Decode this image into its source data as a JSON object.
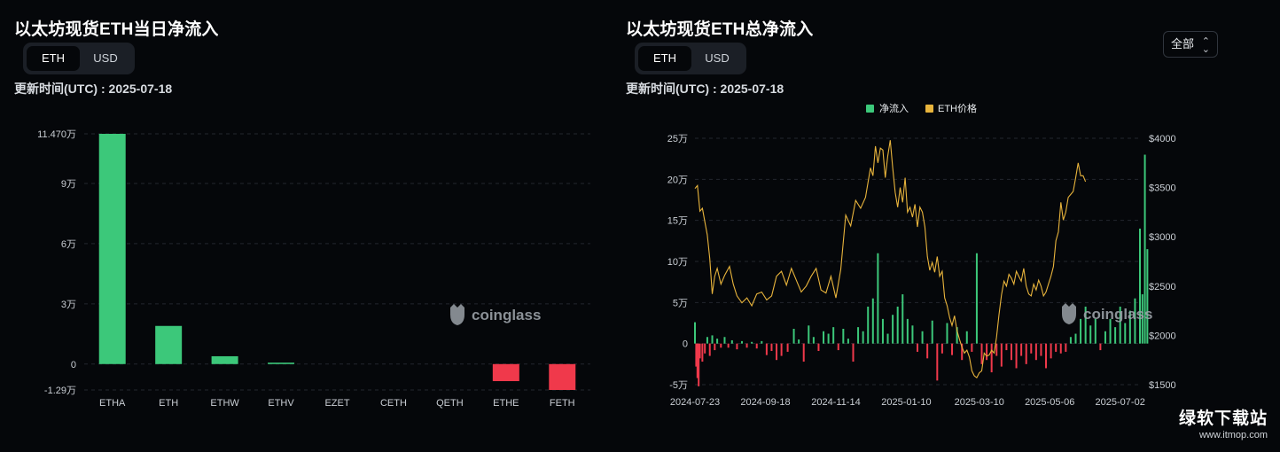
{
  "left": {
    "title": "以太坊现货ETH当日净流入",
    "toggle": [
      "ETH",
      "USD"
    ],
    "active_toggle": "ETH",
    "updated": "更新时间(UTC) : 2025-07-18",
    "watermark": "coinglass"
  },
  "right": {
    "title": "以太坊现货ETH总净流入",
    "toggle": [
      "ETH",
      "USD"
    ],
    "active_toggle": "ETH",
    "updated": "更新时间(UTC) : 2025-07-18",
    "range": "全部",
    "watermark": "coinglass"
  },
  "site": {
    "name": "绿软下载站",
    "url": "www.itmop.com"
  },
  "colors": {
    "positive": "#3cc87a",
    "negative": "#f0394b",
    "price": "#e8b43c",
    "grid": "#23272e"
  },
  "chart_data": [
    {
      "type": "bar",
      "categories": [
        "ETHA",
        "ETH",
        "ETHW",
        "ETHV",
        "EZET",
        "CETH",
        "QETH",
        "ETHE",
        "FETH"
      ],
      "values": [
        114700,
        19000,
        3900,
        700,
        0,
        0,
        0,
        -8500,
        -12900
      ],
      "yticks": [
        114700,
        90000,
        60000,
        30000,
        0,
        -12900
      ],
      "ytick_labels": [
        "11.470万",
        "9万",
        "6万",
        "3万",
        "0",
        "-1.29万"
      ],
      "ylim": [
        -12900,
        114700
      ],
      "unit": "ETH",
      "grid": true
    },
    {
      "type": "bar+line",
      "series": [
        {
          "name": "净流入",
          "kind": "bar",
          "axis": "left"
        },
        {
          "name": "ETH价格",
          "kind": "line",
          "axis": "right"
        }
      ],
      "x_start": "2024-07-23",
      "x_end": "2025-07-18",
      "xtick_labels": [
        "2024-07-23",
        "2024-09-18",
        "2024-11-14",
        "2025-01-10",
        "2025-03-10",
        "2025-05-06",
        "2025-07-02"
      ],
      "xtick_days": [
        0,
        57,
        114,
        171,
        230,
        287,
        344
      ],
      "ylim_left": [
        -50000,
        250000
      ],
      "yticks_left": [
        250000,
        200000,
        150000,
        100000,
        50000,
        0,
        -50000
      ],
      "ytick_labels_left": [
        "25万",
        "20万",
        "15万",
        "10万",
        "5万",
        "0",
        "-5万"
      ],
      "ylim_right": [
        1500,
        4000
      ],
      "yticks_right": [
        4000,
        3500,
        3000,
        2500,
        2000,
        1500
      ],
      "ytick_labels_right": [
        "$4000",
        "$3500",
        "$3000",
        "$2500",
        "$2000",
        "$1500"
      ],
      "inflow_points": [
        [
          0,
          26000
        ],
        [
          1,
          -28000
        ],
        [
          2,
          -42000
        ],
        [
          3,
          -52000
        ],
        [
          4,
          -18000
        ],
        [
          6,
          -22000
        ],
        [
          8,
          -12000
        ],
        [
          10,
          8000
        ],
        [
          12,
          -15000
        ],
        [
          14,
          10000
        ],
        [
          16,
          -8000
        ],
        [
          18,
          6000
        ],
        [
          21,
          -5000
        ],
        [
          24,
          8000
        ],
        [
          27,
          -5000
        ],
        [
          30,
          4000
        ],
        [
          34,
          -7000
        ],
        [
          38,
          3000
        ],
        [
          42,
          -5000
        ],
        [
          46,
          2000
        ],
        [
          50,
          -6000
        ],
        [
          54,
          3000
        ],
        [
          58,
          -14000
        ],
        [
          62,
          -9000
        ],
        [
          66,
          -20000
        ],
        [
          70,
          -15000
        ],
        [
          75,
          -10000
        ],
        [
          80,
          18000
        ],
        [
          84,
          5000
        ],
        [
          88,
          -22000
        ],
        [
          92,
          22000
        ],
        [
          96,
          8000
        ],
        [
          100,
          -9000
        ],
        [
          104,
          15000
        ],
        [
          108,
          12000
        ],
        [
          112,
          20000
        ],
        [
          116,
          -8000
        ],
        [
          120,
          18000
        ],
        [
          124,
          6000
        ],
        [
          128,
          -22000
        ],
        [
          132,
          20000
        ],
        [
          136,
          15000
        ],
        [
          140,
          45000
        ],
        [
          144,
          55000
        ],
        [
          148,
          110000
        ],
        [
          152,
          30000
        ],
        [
          156,
          12000
        ],
        [
          160,
          35000
        ],
        [
          164,
          45000
        ],
        [
          168,
          60000
        ],
        [
          172,
          30000
        ],
        [
          176,
          22000
        ],
        [
          180,
          -10000
        ],
        [
          184,
          15000
        ],
        [
          188,
          -18000
        ],
        [
          192,
          28000
        ],
        [
          196,
          -45000
        ],
        [
          200,
          -12000
        ],
        [
          204,
          25000
        ],
        [
          208,
          -14000
        ],
        [
          212,
          20000
        ],
        [
          216,
          -20000
        ],
        [
          220,
          15000
        ],
        [
          224,
          -10000
        ],
        [
          228,
          110000
        ],
        [
          232,
          -25000
        ],
        [
          236,
          -20000
        ],
        [
          240,
          -35000
        ],
        [
          244,
          -15000
        ],
        [
          248,
          -28000
        ],
        [
          252,
          -8000
        ],
        [
          256,
          -20000
        ],
        [
          260,
          -30000
        ],
        [
          264,
          -15000
        ],
        [
          268,
          -25000
        ],
        [
          272,
          -12000
        ],
        [
          276,
          -20000
        ],
        [
          280,
          -15000
        ],
        [
          284,
          -30000
        ],
        [
          288,
          -18000
        ],
        [
          292,
          -10000
        ],
        [
          296,
          -12000
        ],
        [
          300,
          -10000
        ],
        [
          304,
          8000
        ],
        [
          308,
          12000
        ],
        [
          312,
          30000
        ],
        [
          316,
          45000
        ],
        [
          320,
          22000
        ],
        [
          324,
          30000
        ],
        [
          328,
          -8000
        ],
        [
          332,
          15000
        ],
        [
          336,
          30000
        ],
        [
          340,
          20000
        ],
        [
          344,
          45000
        ],
        [
          348,
          25000
        ],
        [
          352,
          40000
        ],
        [
          356,
          55000
        ],
        [
          360,
          140000
        ],
        [
          362,
          60000
        ],
        [
          364,
          230000
        ],
        [
          366,
          115000
        ]
      ],
      "price_points": [
        [
          0,
          3490
        ],
        [
          2,
          3520
        ],
        [
          4,
          3260
        ],
        [
          6,
          3290
        ],
        [
          8,
          3150
        ],
        [
          10,
          3020
        ],
        [
          12,
          2780
        ],
        [
          14,
          2420
        ],
        [
          16,
          2600
        ],
        [
          18,
          2680
        ],
        [
          21,
          2520
        ],
        [
          24,
          2610
        ],
        [
          28,
          2700
        ],
        [
          31,
          2520
        ],
        [
          34,
          2400
        ],
        [
          38,
          2330
        ],
        [
          42,
          2380
        ],
        [
          46,
          2300
        ],
        [
          50,
          2420
        ],
        [
          54,
          2440
        ],
        [
          58,
          2360
        ],
        [
          62,
          2400
        ],
        [
          66,
          2600
        ],
        [
          70,
          2650
        ],
        [
          74,
          2510
        ],
        [
          78,
          2680
        ],
        [
          82,
          2560
        ],
        [
          86,
          2440
        ],
        [
          90,
          2500
        ],
        [
          94,
          2600
        ],
        [
          98,
          2680
        ],
        [
          102,
          2460
        ],
        [
          106,
          2430
        ],
        [
          110,
          2600
        ],
        [
          114,
          2380
        ],
        [
          118,
          2670
        ],
        [
          122,
          3220
        ],
        [
          126,
          3110
        ],
        [
          130,
          3370
        ],
        [
          134,
          3290
        ],
        [
          138,
          3400
        ],
        [
          142,
          3700
        ],
        [
          144,
          3620
        ],
        [
          146,
          3920
        ],
        [
          148,
          3750
        ],
        [
          150,
          3900
        ],
        [
          152,
          3880
        ],
        [
          154,
          3600
        ],
        [
          156,
          3820
        ],
        [
          158,
          3980
        ],
        [
          160,
          3700
        ],
        [
          162,
          3450
        ],
        [
          164,
          3300
        ],
        [
          166,
          3500
        ],
        [
          168,
          3350
        ],
        [
          170,
          3600
        ],
        [
          172,
          3250
        ],
        [
          174,
          3300
        ],
        [
          176,
          3200
        ],
        [
          178,
          3330
        ],
        [
          180,
          3100
        ],
        [
          182,
          3300
        ],
        [
          184,
          3250
        ],
        [
          186,
          3100
        ],
        [
          188,
          2800
        ],
        [
          190,
          2660
        ],
        [
          192,
          2740
        ],
        [
          194,
          2640
        ],
        [
          196,
          2800
        ],
        [
          198,
          2600
        ],
        [
          200,
          2650
        ],
        [
          202,
          2380
        ],
        [
          204,
          2300
        ],
        [
          206,
          2180
        ],
        [
          208,
          2100
        ],
        [
          210,
          2200
        ],
        [
          212,
          2050
        ],
        [
          214,
          1960
        ],
        [
          216,
          1880
        ],
        [
          218,
          1820
        ],
        [
          220,
          1850
        ],
        [
          222,
          1780
        ],
        [
          224,
          1640
        ],
        [
          226,
          1590
        ],
        [
          228,
          1570
        ],
        [
          230,
          1620
        ],
        [
          232,
          1640
        ],
        [
          234,
          1820
        ],
        [
          236,
          1790
        ],
        [
          238,
          1800
        ],
        [
          240,
          1850
        ],
        [
          242,
          1820
        ],
        [
          244,
          1980
        ],
        [
          246,
          2210
        ],
        [
          248,
          2410
        ],
        [
          250,
          2550
        ],
        [
          252,
          2500
        ],
        [
          254,
          2620
        ],
        [
          256,
          2580
        ],
        [
          258,
          2520
        ],
        [
          260,
          2650
        ],
        [
          262,
          2600
        ],
        [
          264,
          2550
        ],
        [
          266,
          2680
        ],
        [
          268,
          2500
        ],
        [
          270,
          2420
        ],
        [
          272,
          2400
        ],
        [
          274,
          2520
        ],
        [
          276,
          2460
        ],
        [
          278,
          2560
        ],
        [
          280,
          2500
        ],
        [
          282,
          2400
        ],
        [
          284,
          2440
        ],
        [
          286,
          2520
        ],
        [
          288,
          2600
        ],
        [
          290,
          2700
        ],
        [
          292,
          2960
        ],
        [
          294,
          3050
        ],
        [
          296,
          3350
        ],
        [
          298,
          3170
        ],
        [
          300,
          3250
        ],
        [
          302,
          3400
        ],
        [
          304,
          3430
        ],
        [
          306,
          3460
        ],
        [
          308,
          3600
        ],
        [
          310,
          3750
        ],
        [
          312,
          3620
        ],
        [
          314,
          3620
        ],
        [
          316,
          3560
        ]
      ]
    }
  ]
}
